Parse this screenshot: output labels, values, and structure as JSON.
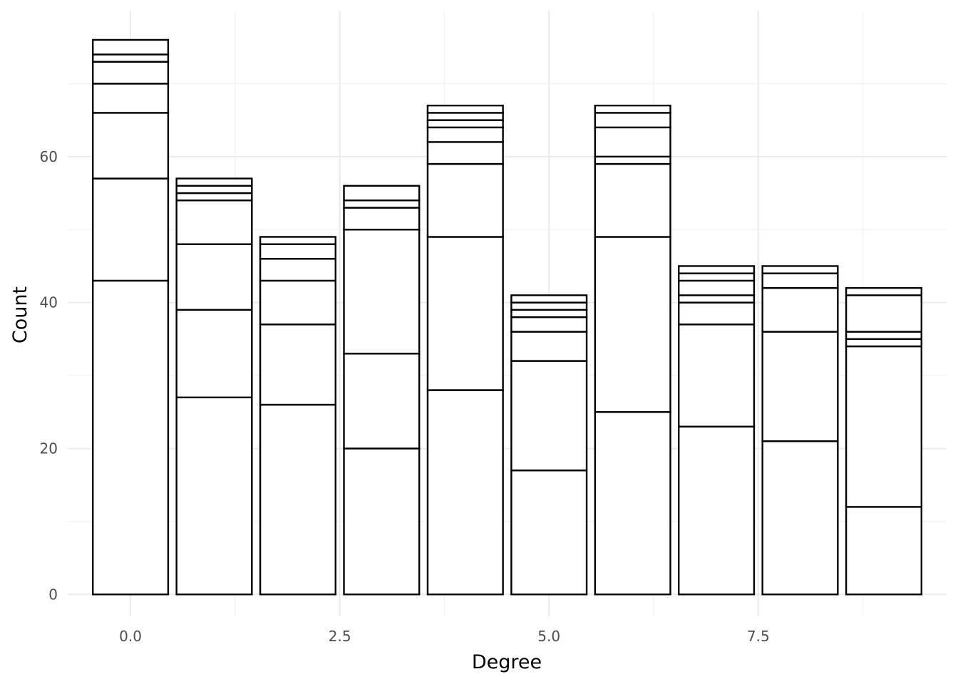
{
  "chart_data": {
    "type": "bar",
    "stacked": true,
    "title": "",
    "xlabel": "Degree",
    "ylabel": "Count",
    "x": [
      0,
      1,
      2,
      3,
      4,
      5,
      6,
      7,
      8,
      9
    ],
    "stack_boundaries": [
      [
        43,
        57,
        66,
        70,
        73,
        74,
        76
      ],
      [
        27,
        39,
        48,
        54,
        55,
        56,
        57
      ],
      [
        26,
        37,
        43,
        46,
        48,
        49
      ],
      [
        20,
        33,
        50,
        53,
        54,
        56
      ],
      [
        28,
        49,
        59,
        62,
        64,
        65,
        66,
        67
      ],
      [
        17,
        32,
        36,
        38,
        39,
        40,
        41
      ],
      [
        25,
        49,
        59,
        60,
        64,
        66,
        67
      ],
      [
        23,
        37,
        40,
        41,
        43,
        44,
        45
      ],
      [
        21,
        36,
        42,
        44,
        45
      ],
      [
        12,
        34,
        35,
        36,
        41,
        42
      ]
    ],
    "totals": [
      76,
      57,
      49,
      56,
      67,
      41,
      67,
      45,
      45,
      42
    ],
    "xlim": [
      -0.75,
      9.75
    ],
    "ylim": [
      -3,
      80
    ],
    "x_ticks": [
      0.0,
      2.5,
      5.0,
      7.5
    ],
    "x_tick_labels": [
      "0.0",
      "2.5",
      "5.0",
      "7.5"
    ],
    "y_ticks": [
      0,
      20,
      40,
      60
    ],
    "y_tick_labels": [
      "0",
      "20",
      "40",
      "60"
    ],
    "grid": true,
    "legend": "none",
    "bar_fill": "#ffffff",
    "bar_outline": "#000000",
    "grid_color": "#ebebeb"
  }
}
